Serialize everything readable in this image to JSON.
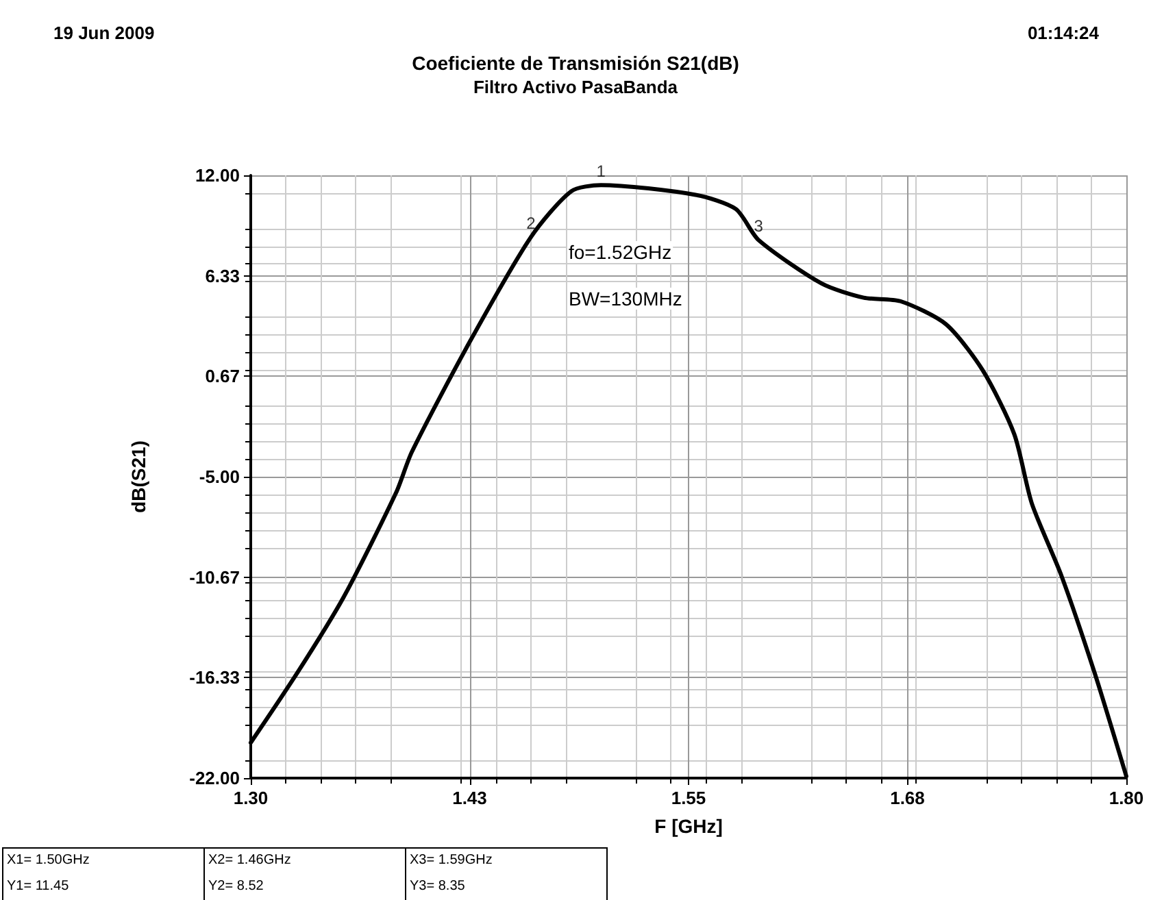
{
  "chart_data": {
    "type": "line",
    "title": "Coeficiente de Transmisión S21(dB)",
    "subtitle": "Filtro Activo PasaBanda",
    "xlabel": "F [GHz]",
    "ylabel": "dB(S21)",
    "x": [
      1.3,
      1.327,
      1.353,
      1.383,
      1.392,
      1.425,
      1.46,
      1.483,
      1.5,
      1.554,
      1.577,
      1.59,
      1.626,
      1.65,
      1.671,
      1.697,
      1.718,
      1.736,
      1.746,
      1.763,
      1.782,
      1.8
    ],
    "series": [
      {
        "color": "#000000",
        "values": [
          -20.0,
          -16.0,
          -11.8,
          -5.9,
          -3.6,
          2.6,
          8.52,
          11.1,
          11.45,
          10.9,
          10.1,
          8.35,
          5.9,
          5.1,
          4.9,
          3.6,
          1.0,
          -2.6,
          -6.5,
          -10.6,
          -16.1,
          -21.9
        ]
      }
    ],
    "xlim": [
      1.3,
      1.8
    ],
    "xticks": [
      {
        "value": 1.3,
        "label": "1.30"
      },
      {
        "value": 1.425,
        "label": "1.43"
      },
      1.55,
      {
        "value": 1.675,
        "label": "1.68"
      },
      {
        "value": 1.8,
        "label": "1.80"
      }
    ],
    "ylim": [
      -22,
      12
    ],
    "yticks": [
      {
        "value": -22,
        "label": "-22.00"
      },
      {
        "value": -16.333,
        "label": "-16.33"
      },
      {
        "value": -10.667,
        "label": "-10.67"
      },
      {
        "value": -5,
        "label": "-5.00"
      },
      {
        "value": 0.667,
        "label": "0.67"
      },
      {
        "value": 6.333,
        "label": "6.33"
      },
      {
        "value": 12,
        "label": "12.00"
      }
    ],
    "grid": true,
    "marker": "none",
    "line_style": "solid",
    "annotations": [
      "19 Jun 2009",
      "01:14:24",
      "fo=1.52GHz",
      "BW=130MHz",
      "X1= 1.50GHz",
      "Y1= 11.45",
      "X2= 1.46GHz",
      "Y2= 8.52",
      "X3= 1.59GHz",
      "Y3= 8.35",
      {
        "text": "1",
        "x": 1.5,
        "y": 11.45
      },
      {
        "text": "2",
        "x": 1.46,
        "y": 8.52
      },
      {
        "text": "3",
        "x": 1.59,
        "y": 8.35
      }
    ]
  }
}
